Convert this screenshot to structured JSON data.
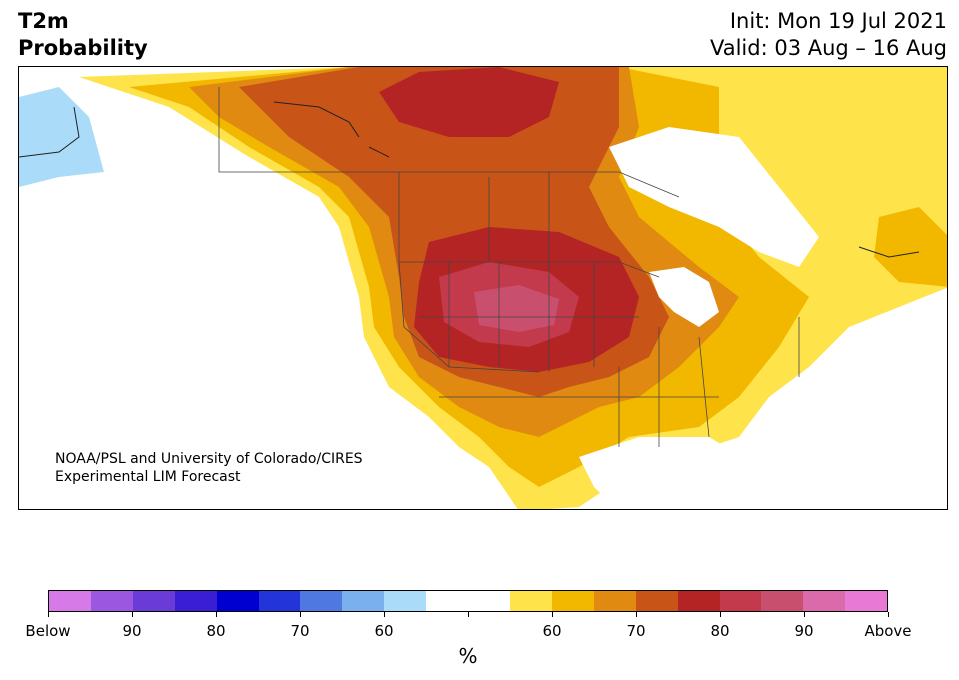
{
  "header": {
    "variable": "T2m",
    "product": "Probability",
    "init": "Init: Mon 19 Jul 2021",
    "valid": "Valid: 03 Aug – 16 Aug"
  },
  "credit": {
    "line1": "NOAA/PSL and University of Colorado/CIRES",
    "line2": "Experimental LIM Forecast"
  },
  "colorbar": {
    "colors": [
      "#d67ae8",
      "#9c57e0",
      "#6b3bd8",
      "#3a1ed6",
      "#0000d0",
      "#2335d8",
      "#4f78e0",
      "#7ab0ee",
      "#aadcfa",
      "#ffffff",
      "#ffffff",
      "#fee44a",
      "#f2b800",
      "#e08a12",
      "#c85418",
      "#b42424",
      "#c23a4c",
      "#c8506e",
      "#da6aaa",
      "#e87ad6"
    ],
    "tick_labels": [
      "Below",
      "90",
      "80",
      "70",
      "60",
      "",
      "60",
      "70",
      "80",
      "90",
      "Above"
    ],
    "units": "%"
  },
  "map": {
    "regions": [
      {
        "category": "below 60%",
        "color": "#aadcfa",
        "area": "Alaska / northwest"
      },
      {
        "category": "above 60%",
        "color": "#fee44a",
        "area": "western margins, southeast US, Atlantic Canada"
      },
      {
        "category": "above 65%",
        "color": "#f2b800",
        "area": "Pacific coast, eastern US, Quebec"
      },
      {
        "category": "above 70%",
        "color": "#e08a12",
        "area": "Great Plains, Ontario"
      },
      {
        "category": "above 75%",
        "color": "#c85418",
        "area": "central Canada, Great Lakes"
      },
      {
        "category": "above 80%",
        "color": "#b42424",
        "area": "northern Plains, Nunavut"
      },
      {
        "category": "above 85%",
        "color": "#c23a4c",
        "area": "Montana / Dakotas / Wyoming"
      },
      {
        "category": "above 90%",
        "color": "#c8506e",
        "area": "Wyoming / South Dakota core"
      }
    ]
  }
}
